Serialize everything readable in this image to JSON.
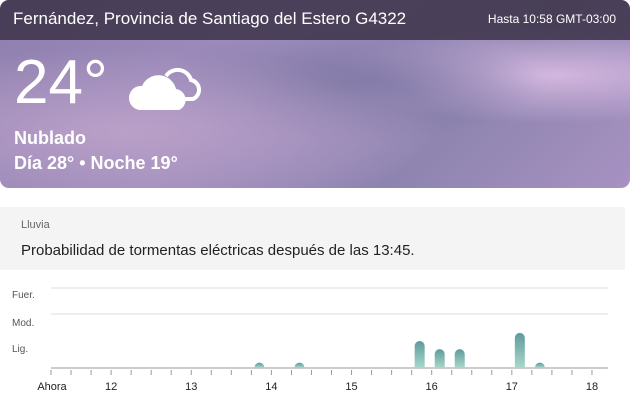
{
  "header": {
    "location": "Fernández, Provincia de Santiago del Estero G4322",
    "valid_until": "Hasta 10:58 GMT-03:00"
  },
  "current": {
    "temperature": "24°",
    "icon": "cloudy-icon",
    "condition": "Nublado",
    "day_night": "Día 28° • Noche 19°"
  },
  "rain": {
    "label": "Lluvia",
    "message": "Probabilidad de tormentas eléctricas después de las 13:45."
  },
  "chart_data": {
    "type": "bar",
    "y_levels": [
      "Lig.",
      "Mod.",
      "Fuer."
    ],
    "ylim": [
      0,
      3
    ],
    "x_tick_labels": [
      "Ahora",
      "12",
      "13",
      "14",
      "15",
      "16",
      "17",
      "18"
    ],
    "x_ticks": [
      11.25,
      12,
      13,
      14,
      15,
      16,
      17,
      18
    ],
    "xlim": [
      11.25,
      18.2
    ],
    "x": [
      13.85,
      14.35,
      15.85,
      16.1,
      16.35,
      17.1,
      17.35
    ],
    "values": [
      0.2,
      0.2,
      1.0,
      0.7,
      0.7,
      1.3,
      0.2
    ],
    "grid": true,
    "colors": {
      "bar_top": "#5f9a9c",
      "bar_bottom": "#a8d8cb"
    }
  }
}
